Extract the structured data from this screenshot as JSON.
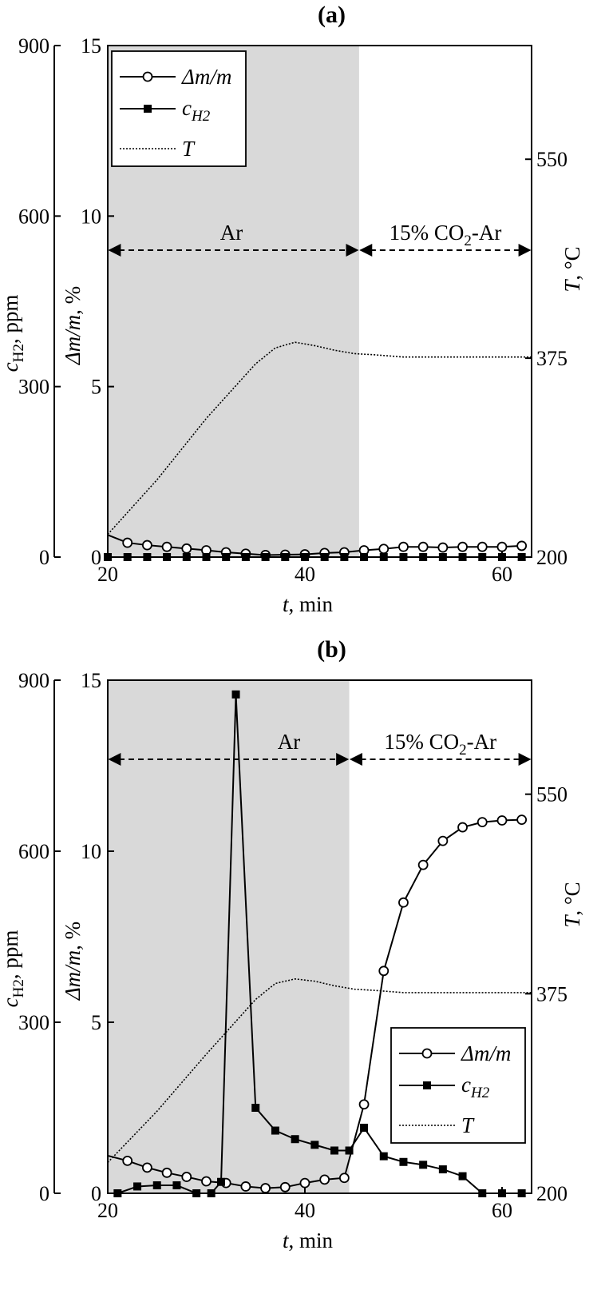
{
  "chart_data": [
    {
      "type": "line",
      "title": "(a)",
      "xlabel": "t, min",
      "xlim": [
        20,
        63
      ],
      "xticks": [
        20,
        40,
        60
      ],
      "y_left_outer": {
        "label": "cH2, ppm",
        "label_main": "c",
        "label_sub": "H2",
        "label_unit": ", ppm",
        "ylim": [
          0,
          900
        ],
        "ticks": [
          0,
          300,
          600,
          900
        ]
      },
      "y_left_inner": {
        "label": "Δm/m, %",
        "ylim": [
          0,
          15
        ],
        "ticks": [
          0,
          5,
          10,
          15
        ]
      },
      "y_right": {
        "label": "T, °C",
        "ylim": [
          200,
          650
        ],
        "ticks": [
          200,
          375,
          550
        ]
      },
      "shaded_region": {
        "label": "Ar",
        "x": [
          20,
          45.5
        ]
      },
      "regions": [
        {
          "label": "Ar",
          "x": [
            20,
            45.5
          ]
        },
        {
          "label": "15% CO2-Ar",
          "x": [
            45.5,
            63
          ]
        }
      ],
      "legend": {
        "position": "top-left",
        "entries": [
          {
            "text": "Δm/m"
          },
          {
            "text": "cH2",
            "main": "c",
            "sub": "H2"
          },
          {
            "text": "T"
          }
        ]
      },
      "series": [
        {
          "name": "Δm/m",
          "axis": "left_inner",
          "marker": "open-circle",
          "x": [
            20,
            22,
            24,
            26,
            28,
            30,
            32,
            34,
            36,
            38,
            40,
            42,
            44,
            46,
            48,
            50,
            52,
            54,
            56,
            58,
            60,
            62
          ],
          "y": [
            0.65,
            0.42,
            0.35,
            0.3,
            0.25,
            0.2,
            0.14,
            0.1,
            0.06,
            0.07,
            0.08,
            0.12,
            0.14,
            0.2,
            0.24,
            0.3,
            0.3,
            0.28,
            0.3,
            0.3,
            0.3,
            0.33
          ],
          "marker_x": [
            22,
            24,
            26,
            28,
            30,
            32,
            34,
            36,
            38,
            40,
            42,
            44,
            46,
            48,
            50,
            52,
            54,
            56,
            58,
            60,
            62
          ]
        },
        {
          "name": "cH2",
          "axis": "left_outer",
          "marker": "filled-square",
          "x": [
            20,
            22,
            24,
            26,
            28,
            30,
            32,
            34,
            36,
            38,
            40,
            42,
            44,
            46,
            48,
            50,
            52,
            54,
            56,
            58,
            60,
            62
          ],
          "y": [
            0,
            0,
            0,
            0,
            0,
            0,
            0,
            0,
            0,
            0,
            0,
            0,
            0,
            0,
            0,
            0,
            0,
            0,
            0,
            0,
            0,
            0
          ]
        },
        {
          "name": "T",
          "axis": "right",
          "style": "dotted",
          "x": [
            20,
            25,
            30,
            35,
            37,
            39,
            41,
            43,
            45,
            47,
            50,
            55,
            60,
            63
          ],
          "y": [
            220,
            268,
            322,
            370,
            384,
            389,
            386,
            382,
            379,
            378,
            376,
            376,
            376,
            376
          ]
        }
      ]
    },
    {
      "type": "line",
      "title": "(b)",
      "xlabel": "t, min",
      "xlim": [
        20,
        63
      ],
      "xticks": [
        20,
        40,
        60
      ],
      "y_left_outer": {
        "label": "cH2, ppm",
        "label_main": "c",
        "label_sub": "H2",
        "label_unit": ", ppm",
        "ylim": [
          0,
          900
        ],
        "ticks": [
          0,
          300,
          600,
          900
        ]
      },
      "y_left_inner": {
        "label": "Δm/m, %",
        "ylim": [
          0,
          15
        ],
        "ticks": [
          0,
          5,
          10,
          15
        ]
      },
      "y_right": {
        "label": "T, °C",
        "ylim": [
          200,
          650
        ],
        "ticks": [
          200,
          375,
          550
        ]
      },
      "shaded_region": {
        "label": "Ar",
        "x": [
          20,
          44.5
        ]
      },
      "regions": [
        {
          "label": "Ar",
          "x": [
            20,
            44.5
          ]
        },
        {
          "label": "15% CO2-Ar",
          "x": [
            44.5,
            63
          ]
        }
      ],
      "legend": {
        "position": "bottom-right",
        "entries": [
          {
            "text": "Δm/m"
          },
          {
            "text": "cH2",
            "main": "c",
            "sub": "H2"
          },
          {
            "text": "T"
          }
        ]
      },
      "series": [
        {
          "name": "Δm/m",
          "axis": "left_inner",
          "marker": "open-circle",
          "x": [
            20,
            22,
            24,
            26,
            28,
            30,
            32,
            34,
            36,
            38,
            40,
            42,
            44,
            46,
            48,
            50,
            52,
            54,
            56,
            58,
            60,
            62
          ],
          "y": [
            1.1,
            0.95,
            0.75,
            0.6,
            0.48,
            0.35,
            0.3,
            0.2,
            0.15,
            0.18,
            0.3,
            0.4,
            0.45,
            2.6,
            6.5,
            8.5,
            9.6,
            10.3,
            10.7,
            10.85,
            10.9,
            10.92
          ],
          "marker_x": [
            22,
            24,
            26,
            28,
            30,
            32,
            34,
            36,
            38,
            40,
            42,
            44,
            46,
            48,
            50,
            52,
            54,
            56,
            58,
            60,
            62
          ]
        },
        {
          "name": "cH2",
          "axis": "left_outer",
          "marker": "filled-square",
          "x": [
            21,
            23,
            25,
            27,
            29,
            30.5,
            31.5,
            33,
            35,
            37,
            39,
            41,
            43,
            44.5,
            46,
            48,
            50,
            52,
            54,
            56,
            58,
            60,
            62
          ],
          "y": [
            0,
            12,
            14,
            14,
            0,
            0,
            20,
            875,
            150,
            110,
            95,
            85,
            75,
            75,
            115,
            65,
            55,
            50,
            42,
            30,
            0,
            0,
            0
          ]
        },
        {
          "name": "T",
          "axis": "right",
          "style": "dotted",
          "x": [
            20,
            25,
            30,
            35,
            37,
            39,
            41,
            43,
            45,
            47,
            50,
            55,
            60,
            63
          ],
          "y": [
            227,
            272,
            322,
            370,
            384,
            388,
            386,
            382,
            379,
            378,
            376,
            376,
            376,
            376
          ]
        }
      ]
    }
  ]
}
